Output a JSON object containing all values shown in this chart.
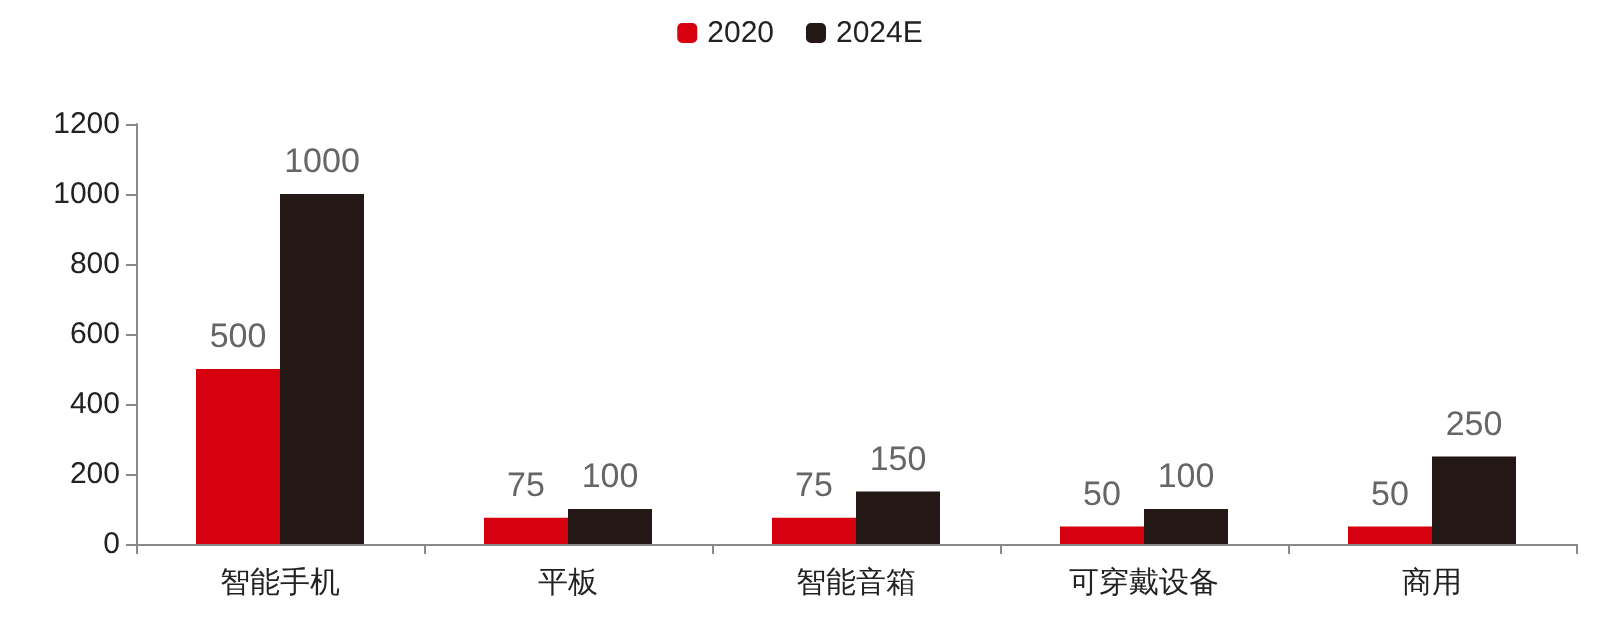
{
  "chart_data": {
    "type": "bar",
    "categories": [
      "智能手机",
      "平板",
      "智能音箱",
      "可穿戴设备",
      "商用"
    ],
    "series": [
      {
        "name": "2020",
        "color": "#d7000f",
        "values": [
          500,
          75,
          75,
          50,
          50
        ]
      },
      {
        "name": "2024E",
        "color": "#231815",
        "values": [
          1000,
          100,
          150,
          100,
          250
        ]
      }
    ],
    "ylim": [
      0,
      1200
    ],
    "yticks": [
      0,
      200,
      400,
      600,
      800,
      1000,
      1200
    ],
    "data_labels": true,
    "grid": false,
    "legend": "top"
  }
}
